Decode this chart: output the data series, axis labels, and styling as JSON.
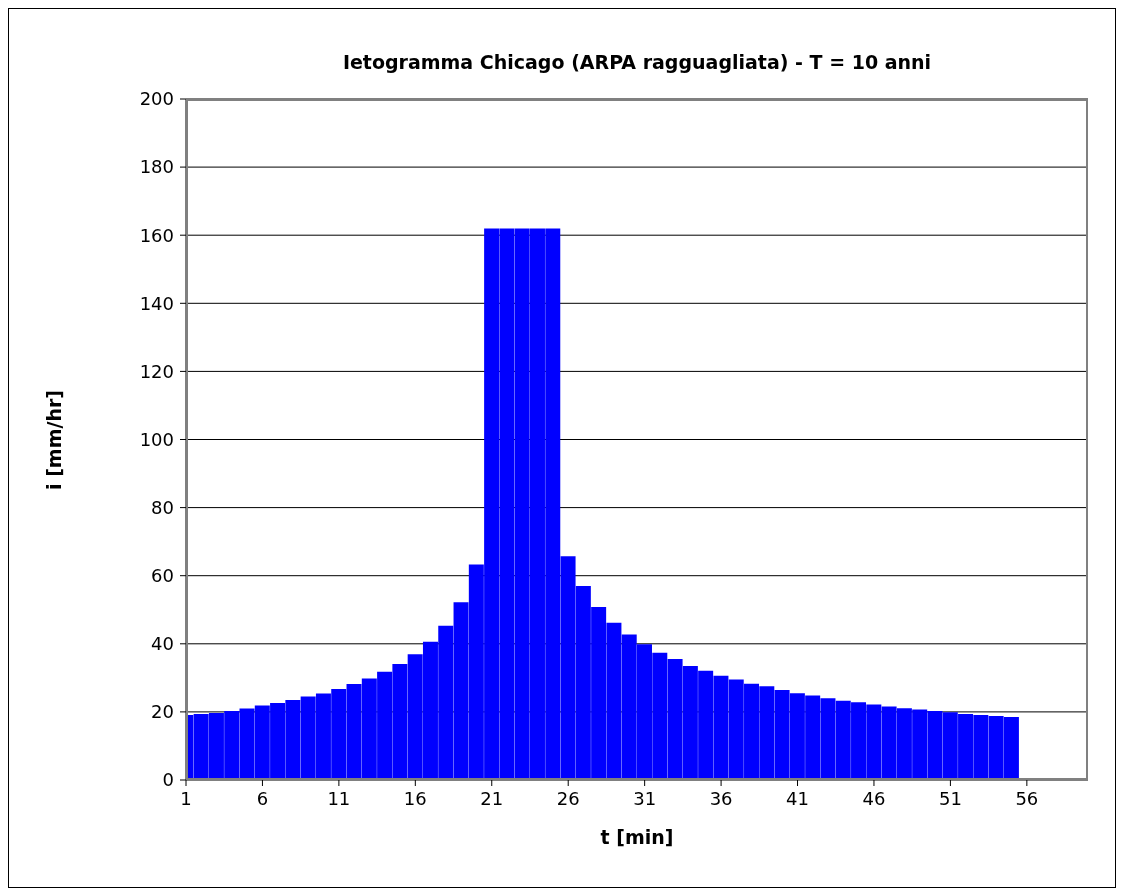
{
  "chart_data": {
    "type": "bar",
    "title": "Ietogramma Chicago (ARPA ragguagliata) - T = 10 anni",
    "xlabel": "t [min]",
    "ylabel": "i [mm/hr]",
    "x": [
      1,
      2,
      3,
      4,
      5,
      6,
      7,
      8,
      9,
      10,
      11,
      12,
      13,
      14,
      15,
      16,
      17,
      18,
      19,
      20,
      21,
      22,
      23,
      24,
      25,
      26,
      27,
      28,
      29,
      30,
      31,
      32,
      33,
      34,
      35,
      36,
      37,
      38,
      39,
      40,
      41,
      42,
      43,
      44,
      45,
      46,
      47,
      48,
      49,
      50,
      51,
      52,
      53,
      54,
      55
    ],
    "series": [
      {
        "color": "#0000ff",
        "values": [
          19.1,
          19.4,
          19.7,
          20.3,
          21.0,
          21.9,
          22.6,
          23.5,
          24.5,
          25.4,
          26.7,
          28.2,
          29.8,
          31.8,
          34.1,
          36.9,
          40.6,
          45.3,
          52.2,
          63.3,
          162,
          162,
          162,
          162,
          162,
          65.7,
          57.0,
          50.8,
          46.2,
          42.7,
          39.9,
          37.4,
          35.5,
          33.5,
          32.1,
          30.6,
          29.5,
          28.3,
          27.5,
          26.4,
          25.5,
          24.8,
          24.0,
          23.3,
          22.8,
          22.2,
          21.6,
          21.1,
          20.7,
          20.3,
          19.9,
          19.4,
          19.1,
          18.8,
          18.5
        ]
      }
    ],
    "xlim": [
      1,
      60
    ],
    "xticks": [
      1,
      6,
      11,
      16,
      21,
      26,
      31,
      36,
      41,
      46,
      51,
      56
    ],
    "ylim": [
      0,
      200
    ],
    "yticks": [
      0,
      20,
      40,
      60,
      80,
      100,
      120,
      140,
      160,
      180,
      200
    ],
    "grid": "y"
  }
}
